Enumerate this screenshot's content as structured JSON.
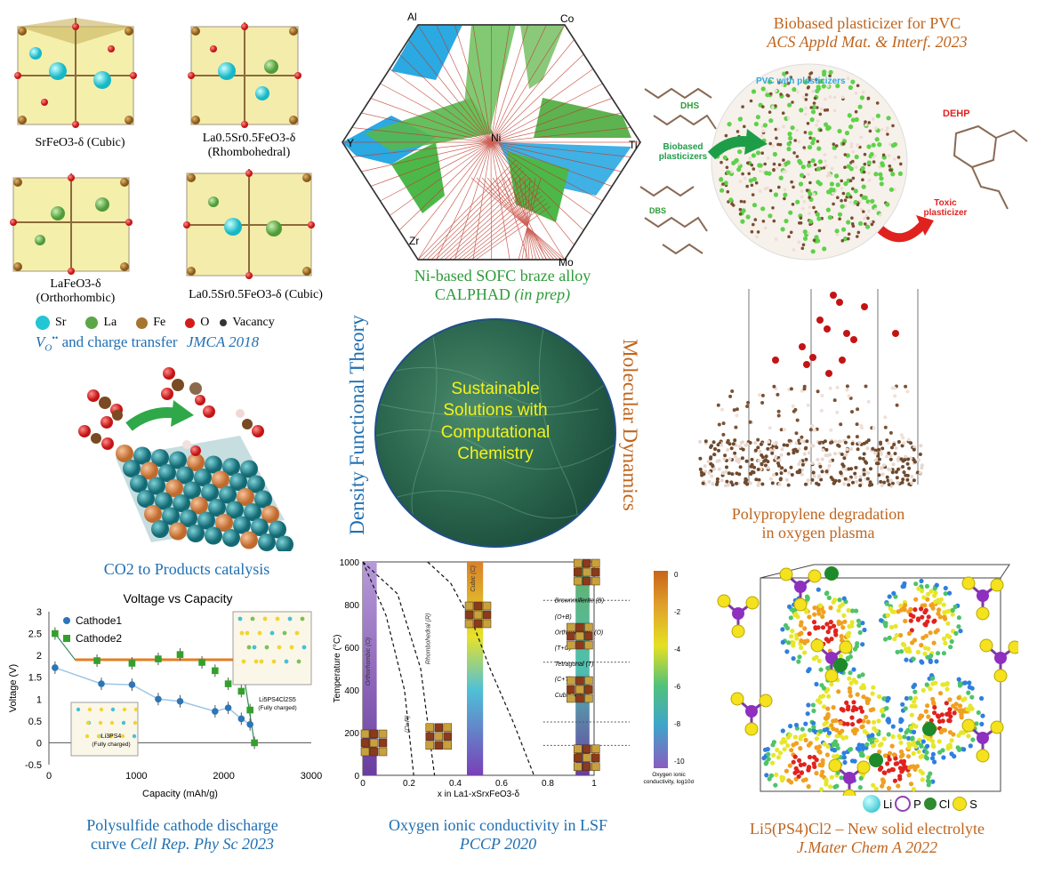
{
  "top_left": {
    "structures": [
      {
        "formula": "SrFeO3-δ",
        "phase": "(Cubic)"
      },
      {
        "formula": "La0.5Sr0.5FeO3-δ",
        "phase": "(Rhombohedral)"
      },
      {
        "formula": "LaFeO3-δ",
        "phase": "(Orthorhombic)"
      },
      {
        "formula": "La0.5Sr0.5FeO3-δ",
        "phase": "(Cubic)"
      }
    ],
    "legend": [
      "Sr",
      "La",
      "Fe",
      "O",
      "Vacancy"
    ],
    "caption_main": "and charge transfer",
    "caption_symbol": "V",
    "caption_ref": "JMCA 2018"
  },
  "co2": {
    "caption": "CO2 to Products catalysis"
  },
  "calphad": {
    "elements": [
      "Al",
      "Co",
      "Y",
      "Ni",
      "Ti",
      "Zr",
      "Mo"
    ],
    "caption_line1": "Ni-based SOFC braze alloy",
    "caption_line2": "CALPHAD",
    "caption_ref": "(in prep)"
  },
  "center": {
    "circle_text": [
      "Sustainable",
      "Solutions with",
      "Computational",
      "Chemistry"
    ],
    "left_label": "Density Functional Theory",
    "right_label": "Molecular Dynamics"
  },
  "pvc": {
    "title": "Biobased plasticizer for PVC",
    "ref": "ACS Appld Mat. & Interf. 2023",
    "labels": {
      "dhs": "DHS",
      "pvc": "PVC with plasticizers",
      "biobased": "Biobased plasticizers",
      "dbs": "DBS",
      "dehp": "DEHP",
      "toxic": "Toxic plasticizer"
    }
  },
  "polypropylene": {
    "line1": "Polypropylene degradation",
    "line2": "in oxygen plasma"
  },
  "voltage_chart": {
    "caption_line1": "Polysulfide cathode discharge",
    "caption_line2": "curve",
    "caption_ref": "Cell Rep. Phy Sc 2023",
    "inset1": [
      "Li3PS4",
      "(Fully charged)"
    ],
    "inset2": [
      "Li5PS4Cl2S5",
      "(Fully charged)"
    ]
  },
  "phase_diagram": {
    "caption": "Oxygen  ionic conductivity in LSF",
    "ref": "PCCP 2020",
    "xlabel": "x in La1-xSrxFeO3-δ",
    "ylabel": "Temperature (°C)",
    "yticks": [
      "1000",
      "800",
      "600",
      "400",
      "200",
      "0"
    ],
    "xticks": [
      "0",
      "0.2",
      "0.4",
      "0.6",
      "0.8",
      "1"
    ],
    "phases": [
      "Brownmillerite (B)",
      "(O+B)",
      "Orthorhombic (O)",
      "(T+O)",
      "Tetragonal (T)",
      "(C+T)",
      "Cubic (C)"
    ],
    "bands": [
      "Orthorhombic (O)",
      "(O+R)",
      "Rhombohedral (R)",
      "Cubic (C)"
    ],
    "colorbar_ticks": [
      "0",
      "-2",
      "-4",
      "-6",
      "-8",
      "-10"
    ],
    "colorbar_label": [
      "Oxygen ionic",
      "conductivity, log10σ"
    ],
    "colors": {
      "high": "#d9711a",
      "mid": "#e6e023",
      "low": "#7b53b8"
    }
  },
  "electrolyte": {
    "legend": [
      "Li",
      "P",
      "Cl",
      "S"
    ],
    "caption_formula": "Li5(PS4)Cl2 – New solid electrolyte",
    "caption_ref": "J.Mater Chem A 2022"
  },
  "chart_data": {
    "type": "scatter",
    "title": "Voltage vs Capacity",
    "xlabel": "Capacity (mAh/g)",
    "ylabel": "Voltage (V)",
    "xlim": [
      0,
      3000
    ],
    "ylim": [
      -0.5,
      3
    ],
    "xticks": [
      0,
      1000,
      2000,
      3000
    ],
    "yticks": [
      -0.5,
      0,
      0.5,
      1,
      1.5,
      2,
      2.5,
      3
    ],
    "legend_position": "top-left",
    "series": [
      {
        "name": "Cathode1",
        "color": "#2e75b6",
        "marker": "circle",
        "x": [
          70,
          600,
          950,
          1250,
          1500,
          1900,
          2050,
          2200,
          2300
        ],
        "y": [
          1.72,
          1.35,
          1.33,
          1.0,
          0.95,
          0.72,
          0.8,
          0.55,
          0.42
        ]
      },
      {
        "name": "Cathode2",
        "color": "#33a02c",
        "marker": "square",
        "x": [
          70,
          550,
          950,
          1250,
          1500,
          1750,
          1900,
          2050,
          2200,
          2300,
          2350
        ],
        "y": [
          2.5,
          1.88,
          1.82,
          1.92,
          2.02,
          1.84,
          1.65,
          1.35,
          1.18,
          0.75,
          0.0
        ]
      }
    ]
  }
}
